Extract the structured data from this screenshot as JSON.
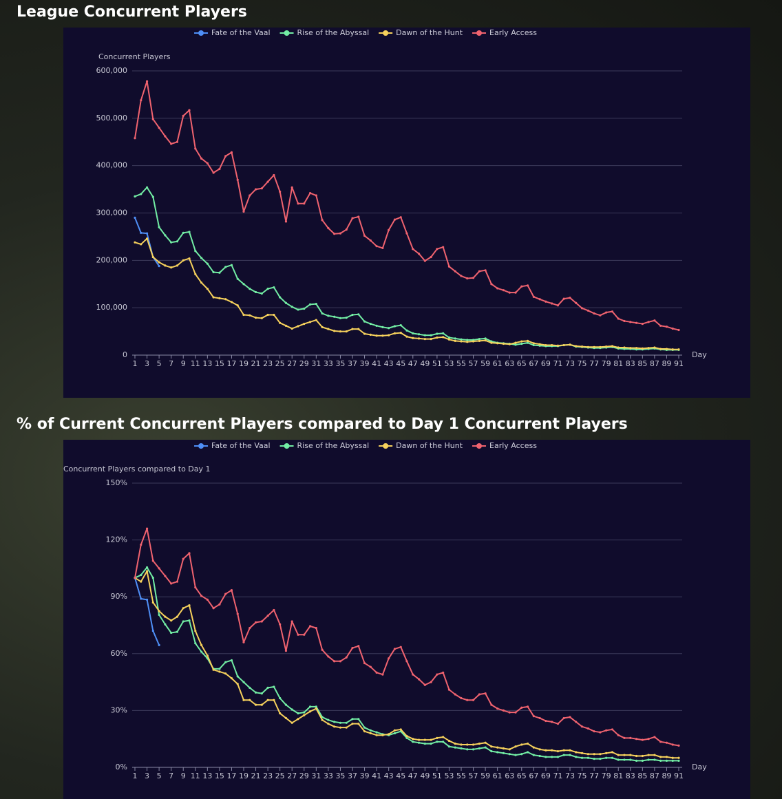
{
  "chart_data": [
    {
      "type": "line",
      "title": "League Concurrent Players",
      "y_label": "Concurrent Players",
      "x_label": "Day",
      "legend": "top",
      "x": [
        1,
        2,
        3,
        4,
        5,
        6,
        7,
        8,
        9,
        10,
        11,
        12,
        13,
        14,
        15,
        16,
        17,
        18,
        19,
        20,
        21,
        22,
        23,
        24,
        25,
        26,
        27,
        28,
        29,
        30,
        31,
        32,
        33,
        34,
        35,
        36,
        37,
        38,
        39,
        40,
        41,
        42,
        43,
        44,
        45,
        46,
        47,
        48,
        49,
        50,
        51,
        52,
        53,
        54,
        55,
        56,
        57,
        58,
        59,
        60,
        61,
        62,
        63,
        64,
        65,
        66,
        67,
        68,
        69,
        70,
        71,
        72,
        73,
        74,
        75,
        76,
        77,
        78,
        79,
        80,
        81,
        82,
        83,
        84,
        85,
        86,
        87,
        88,
        89,
        90,
        91
      ],
      "xlim": [
        1,
        91
      ],
      "xticks": [
        1,
        3,
        5,
        7,
        9,
        11,
        13,
        15,
        17,
        19,
        21,
        23,
        25,
        27,
        29,
        31,
        33,
        35,
        37,
        39,
        41,
        43,
        45,
        47,
        49,
        51,
        53,
        55,
        57,
        59,
        61,
        63,
        65,
        67,
        69,
        71,
        73,
        75,
        77,
        79,
        81,
        83,
        85,
        87,
        89,
        91
      ],
      "ylim": [
        0,
        600000
      ],
      "yticks": [
        0,
        {
          "value": 100000,
          "label": "100,000"
        },
        {
          "value": 200000,
          "label": "200,000"
        },
        {
          "value": 300000,
          "label": "300,000"
        },
        {
          "value": 400000,
          "label": "400,000"
        },
        {
          "value": 500000,
          "label": "500,000"
        },
        {
          "value": 600000,
          "label": "600,000"
        }
      ],
      "grid": true,
      "series": [
        {
          "name": "Fate of the Vaal",
          "color": "#4f8ff7",
          "values": [
            290000,
            258000,
            257000,
            207000,
            188000,
            null,
            null,
            null,
            null,
            null,
            null,
            null,
            null,
            null,
            null,
            null,
            null,
            null,
            null,
            null,
            null,
            null,
            null,
            null,
            null,
            null,
            null,
            null,
            null,
            null,
            null,
            null,
            null,
            null,
            null,
            null,
            null,
            null,
            null,
            null,
            null,
            null,
            null,
            null,
            null,
            null,
            null,
            null,
            null,
            null,
            null,
            null,
            null,
            null,
            null,
            null,
            null,
            null,
            null,
            null,
            null,
            null,
            null,
            null,
            null,
            null,
            null,
            null,
            null,
            null,
            null,
            null,
            null,
            null,
            null,
            null,
            null,
            null,
            null,
            null,
            null,
            null,
            null,
            null,
            null,
            null,
            null,
            null,
            null,
            null,
            null
          ]
        },
        {
          "name": "Rise of the Abyssal",
          "color": "#72eda4",
          "values": [
            335000,
            340000,
            354000,
            334000,
            270000,
            253000,
            238000,
            240000,
            258000,
            260000,
            220000,
            205000,
            193000,
            175000,
            174000,
            186000,
            190000,
            161000,
            150000,
            140000,
            133000,
            130000,
            140000,
            143000,
            122000,
            110000,
            102000,
            96000,
            98000,
            107000,
            108000,
            88000,
            83000,
            81000,
            78000,
            79000,
            85000,
            86000,
            71000,
            66000,
            62000,
            59000,
            57000,
            61000,
            63000,
            52000,
            46000,
            44000,
            42000,
            42000,
            45000,
            46000,
            37000,
            35000,
            33000,
            32000,
            32000,
            34000,
            35000,
            29000,
            26000,
            25000,
            24000,
            22000,
            24000,
            26000,
            21000,
            20000,
            19000,
            19000,
            19000,
            21000,
            22000,
            18000,
            17000,
            16000,
            15000,
            15000,
            16000,
            17000,
            14000,
            13000,
            13000,
            12000,
            12000,
            13000,
            14000,
            12000,
            11000,
            11000,
            11000
          ]
        },
        {
          "name": "Dawn of the Hunt",
          "color": "#f7d25c",
          "values": [
            238000,
            234000,
            246000,
            207000,
            196000,
            189000,
            185000,
            189000,
            200000,
            204000,
            171000,
            153000,
            140000,
            122000,
            120000,
            118000,
            112000,
            105000,
            85000,
            84000,
            79000,
            78000,
            85000,
            85000,
            68000,
            62000,
            56000,
            61000,
            66000,
            70000,
            74000,
            59000,
            55000,
            51000,
            50000,
            50000,
            55000,
            55000,
            45000,
            43000,
            41000,
            41000,
            42000,
            46000,
            47000,
            39000,
            36000,
            35000,
            34000,
            34000,
            37000,
            38000,
            33000,
            30000,
            29000,
            28000,
            29000,
            30000,
            31000,
            26000,
            25000,
            24000,
            23000,
            26000,
            29000,
            30000,
            25000,
            23000,
            21000,
            21000,
            20000,
            21000,
            22000,
            19000,
            18000,
            17000,
            17000,
            17000,
            18000,
            19000,
            16000,
            16000,
            15000,
            15000,
            14000,
            15000,
            16000,
            13000,
            13000,
            12000,
            12000
          ]
        },
        {
          "name": "Early Access",
          "color": "#f0636f",
          "values": [
            458000,
            538000,
            578000,
            498000,
            480000,
            462000,
            446000,
            450000,
            505000,
            517000,
            436000,
            415000,
            405000,
            385000,
            393000,
            420000,
            428000,
            370000,
            303000,
            337000,
            350000,
            352000,
            366000,
            380000,
            345000,
            282000,
            354000,
            320000,
            320000,
            342000,
            337000,
            285000,
            268000,
            256000,
            257000,
            265000,
            289000,
            292000,
            252000,
            242000,
            230000,
            226000,
            264000,
            286000,
            291000,
            257000,
            224000,
            214000,
            199000,
            207000,
            224000,
            228000,
            187000,
            177000,
            167000,
            162000,
            163000,
            177000,
            179000,
            150000,
            141000,
            137000,
            132000,
            132000,
            145000,
            147000,
            123000,
            118000,
            113000,
            109000,
            105000,
            119000,
            121000,
            110000,
            99000,
            94000,
            88000,
            84000,
            90000,
            92000,
            77000,
            72000,
            70000,
            68000,
            66000,
            70000,
            73000,
            62000,
            60000,
            56000,
            53000
          ]
        }
      ]
    },
    {
      "type": "line",
      "title": "% of Current Concurrent Players compared to Day 1 Concurrent Players",
      "y_label": "Concurrent Players compared to Day 1",
      "x_label": "Day",
      "legend": "top",
      "x": [
        1,
        2,
        3,
        4,
        5,
        6,
        7,
        8,
        9,
        10,
        11,
        12,
        13,
        14,
        15,
        16,
        17,
        18,
        19,
        20,
        21,
        22,
        23,
        24,
        25,
        26,
        27,
        28,
        29,
        30,
        31,
        32,
        33,
        34,
        35,
        36,
        37,
        38,
        39,
        40,
        41,
        42,
        43,
        44,
        45,
        46,
        47,
        48,
        49,
        50,
        51,
        52,
        53,
        54,
        55,
        56,
        57,
        58,
        59,
        60,
        61,
        62,
        63,
        64,
        65,
        66,
        67,
        68,
        69,
        70,
        71,
        72,
        73,
        74,
        75,
        76,
        77,
        78,
        79,
        80,
        81,
        82,
        83,
        84,
        85,
        86,
        87,
        88,
        89,
        90,
        91
      ],
      "xlim": [
        1,
        91
      ],
      "xticks": [
        1,
        3,
        5,
        7,
        9,
        11,
        13,
        15,
        17,
        19,
        21,
        23,
        25,
        27,
        29,
        31,
        33,
        35,
        37,
        39,
        41,
        43,
        45,
        47,
        49,
        51,
        53,
        55,
        57,
        59,
        61,
        63,
        65,
        67,
        69,
        71,
        73,
        75,
        77,
        79,
        81,
        83,
        85,
        87,
        89,
        91
      ],
      "ylim": [
        0,
        150
      ],
      "yticks": [
        {
          "value": 0,
          "label": "0%"
        },
        {
          "value": 30,
          "label": "30%"
        },
        {
          "value": 60,
          "label": "60%"
        },
        {
          "value": 90,
          "label": "90%"
        },
        {
          "value": 120,
          "label": "120%"
        },
        {
          "value": 150,
          "label": "150%"
        }
      ],
      "grid": true,
      "series": [
        {
          "name": "Fate of the Vaal",
          "color": "#4f8ff7",
          "values": [
            100,
            89,
            88.5,
            72,
            64.5,
            null,
            null,
            null,
            null,
            null,
            null,
            null,
            null,
            null,
            null,
            null,
            null,
            null,
            null,
            null,
            null,
            null,
            null,
            null,
            null,
            null,
            null,
            null,
            null,
            null,
            null,
            null,
            null,
            null,
            null,
            null,
            null,
            null,
            null,
            null,
            null,
            null,
            null,
            null,
            null,
            null,
            null,
            null,
            null,
            null,
            null,
            null,
            null,
            null,
            null,
            null,
            null,
            null,
            null,
            null,
            null,
            null,
            null,
            null,
            null,
            null,
            null,
            null,
            null,
            null,
            null,
            null,
            null,
            null,
            null,
            null,
            null,
            null,
            null,
            null,
            null,
            null,
            null,
            null,
            null,
            null,
            null,
            null,
            null,
            null,
            null
          ]
        },
        {
          "name": "Rise of the Abyssal",
          "color": "#72eda4",
          "values": [
            100,
            101.5,
            105.5,
            100,
            80.5,
            75.5,
            71,
            71.5,
            77,
            77.5,
            65.5,
            61,
            57.5,
            52,
            52,
            55.5,
            56.5,
            48,
            45,
            42,
            39.5,
            39,
            42,
            42.5,
            36.5,
            33,
            30.5,
            28.5,
            29,
            32,
            32,
            26.5,
            25,
            24,
            23.5,
            23.5,
            25.5,
            25.5,
            21,
            19.5,
            18.5,
            17.5,
            17,
            18,
            19,
            15.5,
            13.5,
            13,
            12.5,
            12.5,
            13.5,
            13.5,
            11,
            10.5,
            10,
            9.5,
            9.5,
            10,
            10.5,
            8.5,
            8,
            7.5,
            7,
            6.5,
            7,
            8,
            6.5,
            6,
            5.5,
            5.5,
            5.5,
            6.5,
            6.5,
            5.5,
            5,
            5,
            4.5,
            4.5,
            5,
            5,
            4,
            4,
            4,
            3.5,
            3.5,
            4,
            4,
            3.5,
            3.5,
            3.5,
            3.5
          ]
        },
        {
          "name": "Dawn of the Hunt",
          "color": "#f7d25c",
          "values": [
            100,
            98,
            103.5,
            87,
            82.5,
            79.5,
            77.5,
            79.5,
            84,
            85.5,
            72,
            64.5,
            59,
            51.5,
            50.5,
            49.5,
            47,
            44,
            35.5,
            35.5,
            33,
            33,
            35.5,
            35.5,
            28.5,
            26,
            23.5,
            25.5,
            27.5,
            29.5,
            31,
            25,
            23,
            21.5,
            21,
            21,
            23,
            23,
            19,
            18,
            17,
            17,
            17.5,
            19.5,
            20,
            16.5,
            15,
            14.5,
            14.5,
            14.5,
            15.5,
            16,
            14,
            12.5,
            12,
            12,
            12,
            12.5,
            13,
            11,
            10.5,
            10,
            9.5,
            11,
            12,
            12.5,
            10.5,
            9.5,
            9,
            9,
            8.5,
            9,
            9,
            8,
            7.5,
            7,
            7,
            7,
            7.5,
            8,
            6.5,
            6.5,
            6.5,
            6,
            6,
            6.5,
            6.5,
            5.5,
            5.5,
            5,
            5
          ]
        },
        {
          "name": "Early Access",
          "color": "#f0636f",
          "values": [
            100,
            117.5,
            126,
            109,
            105,
            101,
            97,
            98,
            110,
            113,
            95,
            90.5,
            88.5,
            84,
            86,
            91.5,
            93.5,
            81,
            66,
            73.5,
            76.5,
            77,
            80,
            83,
            75.5,
            61.5,
            77,
            70,
            70,
            74.5,
            73.5,
            62,
            58.5,
            56,
            56,
            58,
            63,
            64,
            55,
            53,
            50,
            49,
            57.5,
            62.5,
            63.5,
            56,
            49,
            46.5,
            43.5,
            45,
            49,
            50,
            41,
            38.5,
            36.5,
            35.5,
            35.5,
            38.5,
            39,
            33,
            31,
            30,
            29,
            29,
            31.5,
            32,
            27,
            26,
            24.5,
            24,
            23,
            26,
            26.5,
            24,
            21.5,
            20.5,
            19,
            18.5,
            19.5,
            20,
            17,
            15.5,
            15.5,
            15,
            14.5,
            15,
            16,
            13.5,
            13,
            12,
            11.5
          ]
        }
      ]
    }
  ]
}
